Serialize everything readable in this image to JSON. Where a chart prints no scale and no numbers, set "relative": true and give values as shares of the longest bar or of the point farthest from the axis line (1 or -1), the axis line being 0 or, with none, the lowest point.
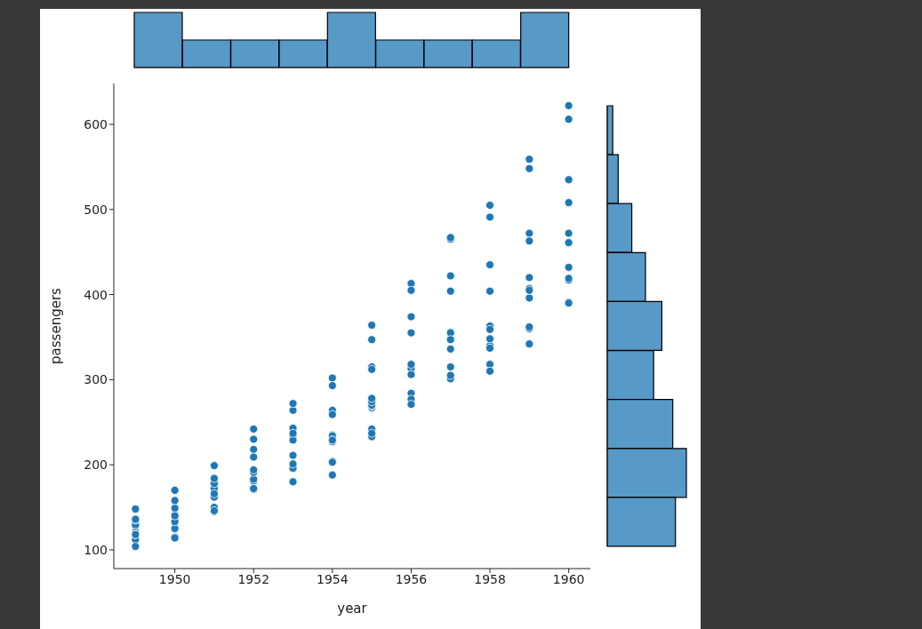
{
  "chart_data": [
    {
      "type": "bar",
      "relative": true,
      "color": "#5799c7",
      "categories": [
        null,
        null,
        null,
        null,
        null,
        null,
        null,
        null,
        null
      ],
      "values": [
        1,
        0.5,
        0.5,
        0.5,
        1,
        0.5,
        0.5,
        0.5,
        1
      ]
    },
    {
      "type": "scatter",
      "xlabel": "year",
      "ylabel": "passengers",
      "color": "#1f77b4",
      "marker": "circle",
      "x": [
        1949,
        1949,
        1949,
        1949,
        1949,
        1949,
        1949,
        1949,
        1949,
        1949,
        1949,
        1949,
        1950,
        1950,
        1950,
        1950,
        1950,
        1950,
        1950,
        1950,
        1950,
        1950,
        1950,
        1950,
        1951,
        1951,
        1951,
        1951,
        1951,
        1951,
        1951,
        1951,
        1951,
        1951,
        1951,
        1952,
        1952,
        1952,
        1952,
        1952,
        1952,
        1952,
        1952,
        1952,
        1952,
        1952,
        1953,
        1953,
        1953,
        1953,
        1953,
        1953,
        1953,
        1953,
        1953,
        1953,
        1953,
        1954,
        1954,
        1954,
        1954,
        1954,
        1954,
        1954,
        1954,
        1954,
        1954,
        1954,
        1954,
        1955,
        1955,
        1955,
        1955,
        1955,
        1955,
        1955,
        1955,
        1955,
        1955,
        1955,
        1955,
        1956,
        1956,
        1956,
        1956,
        1956,
        1956,
        1956,
        1956,
        1956,
        1956,
        1956,
        1956,
        1957,
        1957,
        1957,
        1957,
        1957,
        1957,
        1957,
        1957,
        1957,
        1957,
        1957,
        1957,
        1958,
        1958,
        1958,
        1958,
        1958,
        1958,
        1958,
        1958,
        1958,
        1958,
        1958,
        1959,
        1959,
        1959,
        1959,
        1959,
        1959,
        1959,
        1959,
        1959,
        1959,
        1959,
        1960,
        1960,
        1960,
        1960,
        1960,
        1960,
        1960,
        1960,
        1960,
        1960,
        1960,
        1960
      ],
      "values": [
        112,
        118,
        132,
        129,
        121,
        135,
        148,
        148,
        136,
        119,
        104,
        118,
        115,
        126,
        141,
        135,
        125,
        149,
        170,
        170,
        158,
        133,
        114,
        140,
        145,
        150,
        178,
        172,
        178,
        199,
        199,
        184,
        162,
        146,
        166,
        171,
        180,
        181,
        183,
        218,
        230,
        242,
        209,
        191,
        172,
        194,
        196,
        196,
        235,
        229,
        243,
        264,
        272,
        237,
        211,
        180,
        201,
        204,
        188,
        235,
        227,
        234,
        264,
        302,
        293,
        259,
        229,
        203,
        229,
        242,
        233,
        267,
        269,
        270,
        315,
        364,
        347,
        312,
        274,
        237,
        278,
        284,
        277,
        317,
        313,
        318,
        374,
        413,
        405,
        355,
        306,
        271,
        306,
        315,
        301,
        356,
        348,
        355,
        422,
        465,
        467,
        404,
        347,
        305,
        336,
        340,
        318,
        348,
        363,
        435,
        491,
        505,
        404,
        359,
        310,
        337,
        360,
        342,
        396,
        420,
        472,
        548,
        559,
        463,
        407,
        362,
        405,
        417,
        391,
        419,
        461,
        472,
        535,
        622,
        606,
        508,
        461,
        390,
        432
      ],
      "xlim": [
        1948.45,
        1960.55
      ],
      "xticks": [
        1950,
        1952,
        1954,
        1956,
        1958,
        1960
      ],
      "ylim": [
        78,
        648
      ],
      "yticks": [
        100,
        200,
        300,
        400,
        500,
        600
      ]
    },
    {
      "type": "bar",
      "orientation": "horizontal",
      "relative": true,
      "color": "#5799c7",
      "categories": [
        null,
        null,
        null,
        null,
        null,
        null,
        null,
        null,
        null
      ],
      "values": [
        0.069,
        0.138,
        0.31,
        0.483,
        0.69,
        0.586,
        0.828,
        1,
        0.862
      ]
    }
  ]
}
